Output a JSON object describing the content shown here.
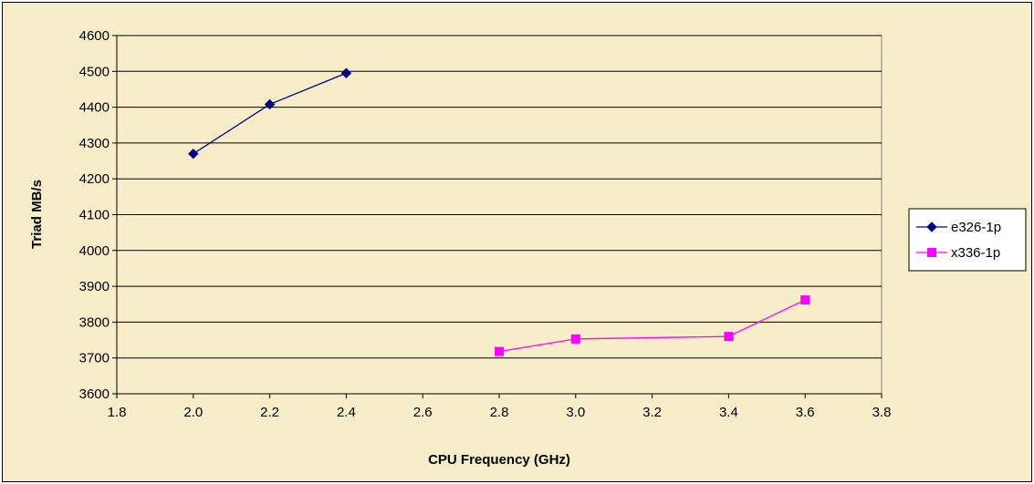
{
  "chart_data": {
    "type": "line",
    "title": "",
    "xlabel": "CPU Frequency (GHz)",
    "ylabel": "Triad MB/s",
    "xlim": [
      1.8,
      3.8
    ],
    "ylim": [
      3600,
      4600
    ],
    "x_ticks": [
      "1.8",
      "2.0",
      "2.2",
      "2.4",
      "2.6",
      "2.8",
      "3.0",
      "3.2",
      "3.4",
      "3.6",
      "3.8"
    ],
    "y_ticks": [
      "3600",
      "3700",
      "3800",
      "3900",
      "4000",
      "4100",
      "4200",
      "4300",
      "4400",
      "4500",
      "4600"
    ],
    "grid": "horizontal",
    "legend_position": "right",
    "series": [
      {
        "name": "e326-1p",
        "color": "#000080",
        "marker": "diamond",
        "x": [
          2.0,
          2.2,
          2.4
        ],
        "y": [
          4270,
          4408,
          4495
        ]
      },
      {
        "name": "x336-1p",
        "color": "#ff00ff",
        "marker": "square",
        "x": [
          2.8,
          3.0,
          3.4,
          3.6
        ],
        "y": [
          3718,
          3753,
          3760,
          3862
        ]
      }
    ]
  }
}
